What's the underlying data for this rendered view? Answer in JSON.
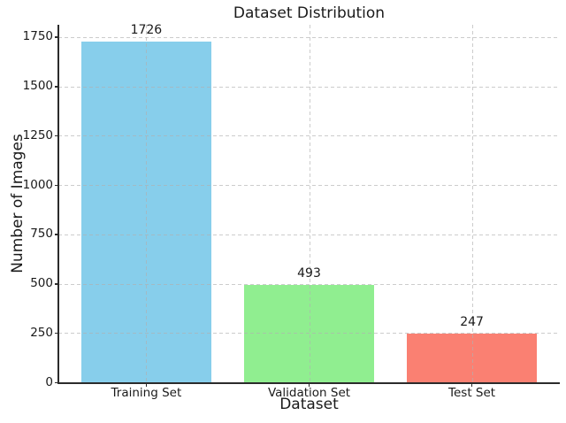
{
  "figure": {
    "background_color": "#ffffff",
    "text_color": "#1a1a1a"
  },
  "chart_data": {
    "type": "bar",
    "title": "Dataset Distribution",
    "xlabel": "Dataset",
    "ylabel": "Number of Images",
    "categories": [
      "Training Set",
      "Validation Set",
      "Test Set"
    ],
    "values": [
      1726,
      493,
      247
    ],
    "value_labels": [
      "1726",
      "493",
      "247"
    ],
    "bar_colors": [
      "#87CEEB",
      "#90EE90",
      "#FA8072"
    ],
    "bar_width_fraction": 0.8,
    "yticks": [
      0,
      250,
      500,
      750,
      1000,
      1250,
      1500,
      1750
    ],
    "ylim": [
      0,
      1812
    ],
    "xlim": [
      -0.54,
      2.54
    ],
    "grid": {
      "visible": true,
      "axis": "both",
      "linestyle": "dashed",
      "color": "#b0b0b0",
      "above_bars": true
    },
    "legend_position": "none",
    "spines": [
      "left",
      "bottom"
    ]
  }
}
